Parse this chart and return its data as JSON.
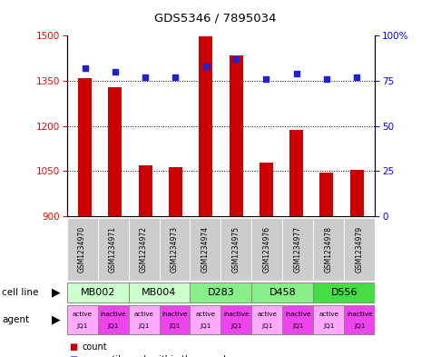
{
  "title": "GDS5346 / 7895034",
  "samples": [
    "GSM1234970",
    "GSM1234971",
    "GSM1234972",
    "GSM1234973",
    "GSM1234974",
    "GSM1234975",
    "GSM1234976",
    "GSM1234977",
    "GSM1234978",
    "GSM1234979"
  ],
  "counts": [
    1358,
    1330,
    1068,
    1063,
    1497,
    1435,
    1078,
    1185,
    1043,
    1053
  ],
  "percentiles": [
    82,
    80,
    77,
    77,
    83,
    87,
    76,
    79,
    76,
    77
  ],
  "ylim_left": [
    900,
    1500
  ],
  "ylim_right": [
    0,
    100
  ],
  "yticks_left": [
    900,
    1050,
    1200,
    1350,
    1500
  ],
  "yticks_right": [
    0,
    25,
    50,
    75,
    100
  ],
  "ytick_right_labels": [
    "0",
    "25",
    "50",
    "75",
    "100%"
  ],
  "bar_color": "#cc0000",
  "dot_color": "#2222cc",
  "sample_box_color": "#cccccc",
  "cell_lines": [
    {
      "label": "MB002",
      "cols": [
        0,
        1
      ],
      "color": "#ccffcc"
    },
    {
      "label": "MB004",
      "cols": [
        2,
        3
      ],
      "color": "#ccffcc"
    },
    {
      "label": "D283",
      "cols": [
        4,
        5
      ],
      "color": "#88ee88"
    },
    {
      "label": "D458",
      "cols": [
        6,
        7
      ],
      "color": "#88ee88"
    },
    {
      "label": "D556",
      "cols": [
        8,
        9
      ],
      "color": "#44dd44"
    }
  ],
  "agents": [
    {
      "label": "active",
      "label2": "JQ1",
      "col": 0,
      "color": "#ffaaff"
    },
    {
      "label": "inactive",
      "label2": "JQ1",
      "col": 1,
      "color": "#ee44ee"
    },
    {
      "label": "active",
      "label2": "JQ1",
      "col": 2,
      "color": "#ffaaff"
    },
    {
      "label": "inactive",
      "label2": "JQ1",
      "col": 3,
      "color": "#ee44ee"
    },
    {
      "label": "active",
      "label2": "JQ1",
      "col": 4,
      "color": "#ffaaff"
    },
    {
      "label": "inactive",
      "label2": "JQ1",
      "col": 5,
      "color": "#ee44ee"
    },
    {
      "label": "active",
      "label2": "JQ1",
      "col": 6,
      "color": "#ffaaff"
    },
    {
      "label": "inactive",
      "label2": "JQ1",
      "col": 7,
      "color": "#ee44ee"
    },
    {
      "label": "active",
      "label2": "JQ1",
      "col": 8,
      "color": "#ffaaff"
    },
    {
      "label": "inactive",
      "label2": "JQ1",
      "col": 9,
      "color": "#ee44ee"
    }
  ]
}
